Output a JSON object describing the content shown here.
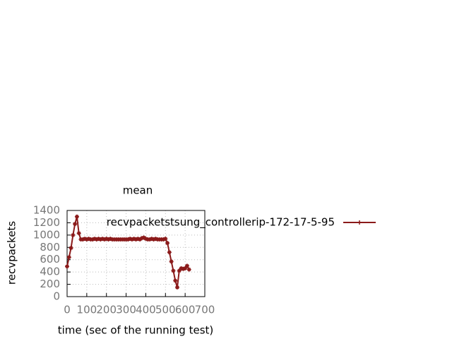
{
  "chart_data": {
    "type": "line",
    "title": "mean",
    "xlabel": "time (sec of the running test)",
    "ylabel": "recvpackets",
    "x": [
      0,
      10,
      20,
      30,
      40,
      50,
      60,
      70,
      80,
      90,
      100,
      110,
      120,
      130,
      140,
      150,
      160,
      170,
      180,
      190,
      200,
      210,
      220,
      230,
      240,
      250,
      260,
      270,
      280,
      290,
      300,
      310,
      320,
      330,
      340,
      350,
      360,
      370,
      380,
      390,
      400,
      410,
      420,
      430,
      440,
      450,
      460,
      470,
      480,
      490,
      500,
      510,
      520,
      530,
      540,
      550,
      560,
      570,
      580,
      590,
      600,
      610,
      620
    ],
    "series": [
      {
        "name": "recvpacketstsung_controllerip-172-17-5-95",
        "color": "#8b1a1a",
        "values": [
          490,
          640,
          790,
          1000,
          1180,
          1300,
          1030,
          930,
          930,
          940,
          930,
          940,
          930,
          930,
          940,
          930,
          940,
          930,
          940,
          930,
          940,
          930,
          940,
          930,
          930,
          930,
          930,
          930,
          930,
          930,
          930,
          930,
          940,
          930,
          940,
          930,
          940,
          930,
          950,
          960,
          940,
          930,
          930,
          940,
          930,
          940,
          930,
          930,
          930,
          930,
          940,
          870,
          720,
          570,
          420,
          260,
          150,
          420,
          460,
          450,
          460,
          500,
          440
        ]
      }
    ],
    "xlim": [
      0,
      700
    ],
    "xticks": [
      0,
      100,
      200,
      300,
      400,
      500,
      600,
      700
    ],
    "ylim": [
      0,
      1400
    ],
    "yticks": [
      0,
      200,
      400,
      600,
      800,
      1000,
      1200,
      1400
    ],
    "grid": true,
    "legend": "top-right"
  }
}
